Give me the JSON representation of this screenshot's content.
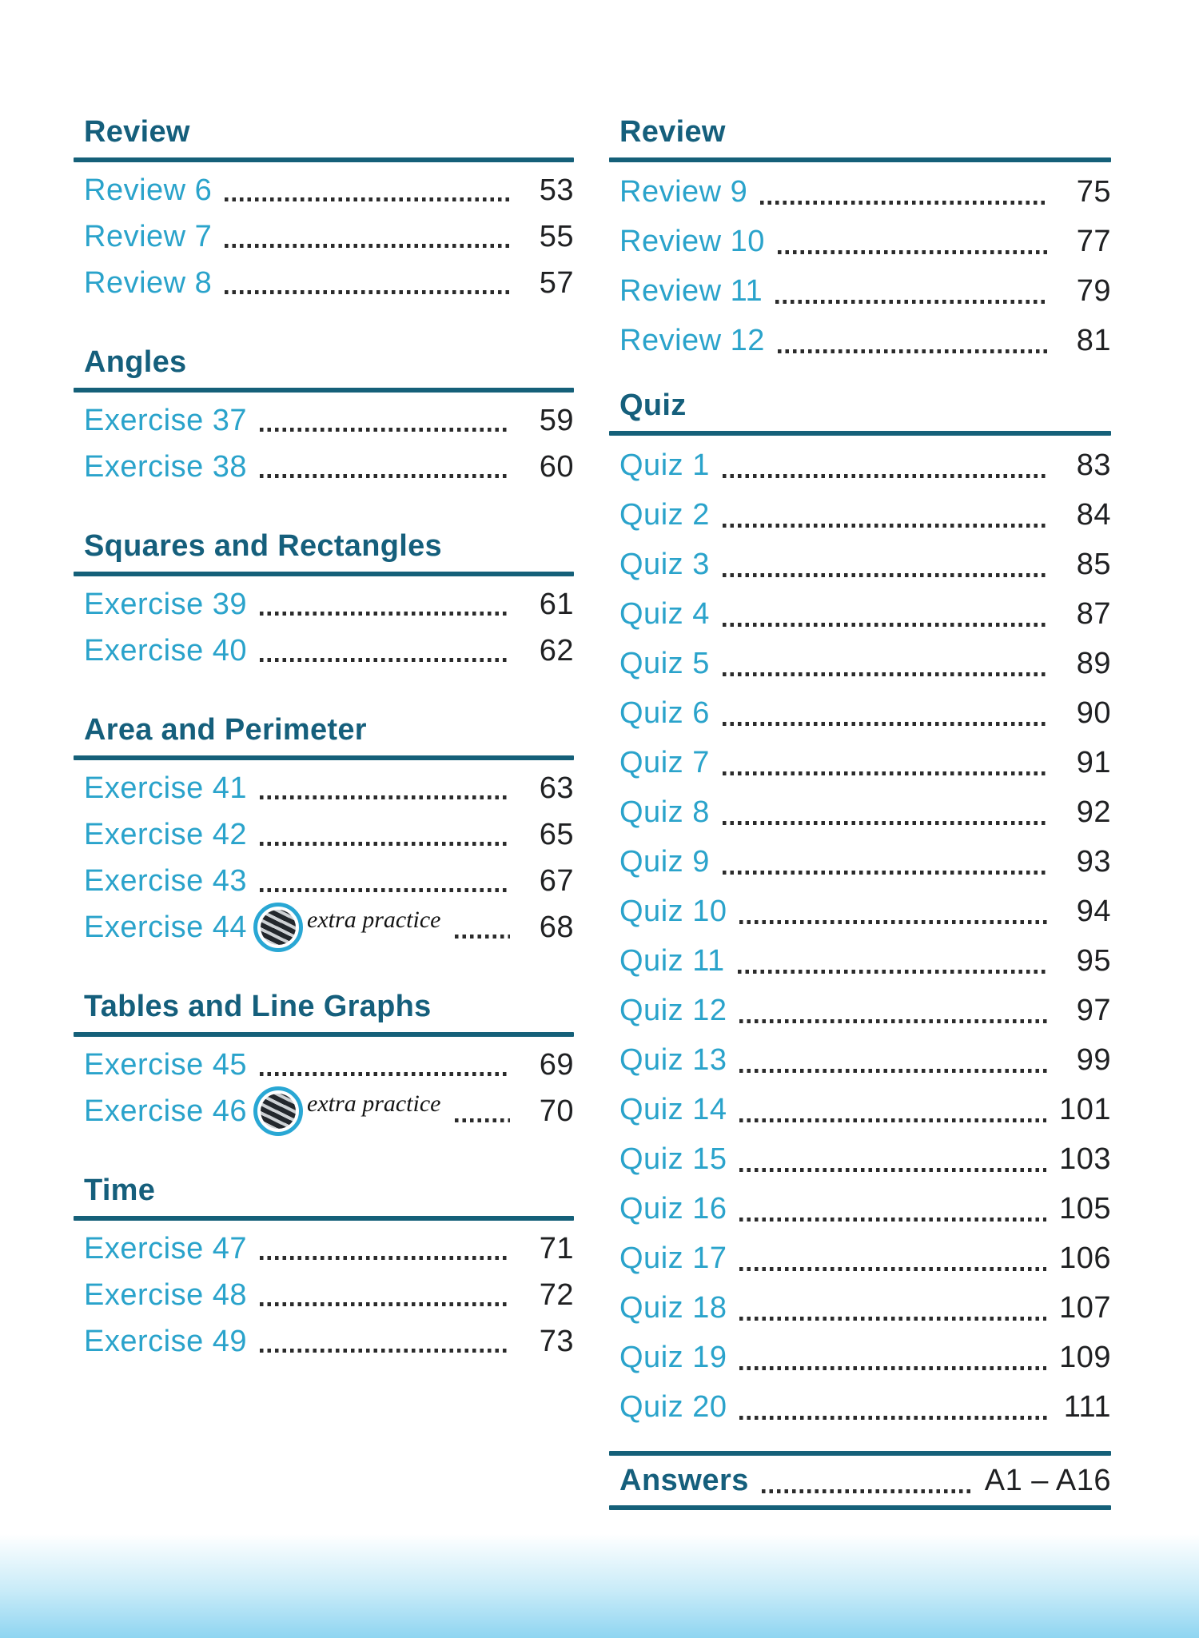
{
  "badge_text": "extra practice",
  "colors": {
    "heading": "#155f7c",
    "rule": "#156079",
    "entry": "#2aa3cb",
    "page_number": "#1f2022",
    "dots": "#2b2b2b",
    "badge_ring": "#29a7d4",
    "wave": "#8fd5f1"
  },
  "columns": [
    {
      "sections": [
        {
          "heading": "Review",
          "entries": [
            {
              "label": "Review 6",
              "page": "53"
            },
            {
              "label": "Review 7",
              "page": "55"
            },
            {
              "label": "Review 8",
              "page": "57"
            }
          ]
        },
        {
          "heading": "Angles",
          "entries": [
            {
              "label": "Exercise 37",
              "page": "59"
            },
            {
              "label": "Exercise 38",
              "page": "60"
            }
          ]
        },
        {
          "heading": "Squares and Rectangles",
          "entries": [
            {
              "label": "Exercise 39",
              "page": "61"
            },
            {
              "label": "Exercise 40",
              "page": "62"
            }
          ]
        },
        {
          "heading": "Area and Perimeter",
          "entries": [
            {
              "label": "Exercise 41",
              "page": "63"
            },
            {
              "label": "Exercise 42",
              "page": "65"
            },
            {
              "label": "Exercise 43",
              "page": "67"
            },
            {
              "label": "Exercise 44",
              "page": "68",
              "badge": true
            }
          ]
        },
        {
          "heading": "Tables and Line Graphs",
          "entries": [
            {
              "label": "Exercise 45",
              "page": "69"
            },
            {
              "label": "Exercise 46",
              "page": "70",
              "badge": true
            }
          ]
        },
        {
          "heading": "Time",
          "entries": [
            {
              "label": "Exercise 47",
              "page": "71"
            },
            {
              "label": "Exercise 48",
              "page": "72"
            },
            {
              "label": "Exercise 49",
              "page": "73"
            }
          ]
        }
      ]
    },
    {
      "sections": [
        {
          "heading": "Review",
          "entries": [
            {
              "label": "Review 9",
              "page": "75"
            },
            {
              "label": "Review 10",
              "page": "77"
            },
            {
              "label": "Review 11",
              "page": "79"
            },
            {
              "label": "Review 12",
              "page": "81"
            }
          ]
        },
        {
          "heading": "Quiz",
          "entries": [
            {
              "label": "Quiz 1",
              "page": "83"
            },
            {
              "label": "Quiz 2",
              "page": "84"
            },
            {
              "label": "Quiz 3",
              "page": "85"
            },
            {
              "label": "Quiz 4",
              "page": "87"
            },
            {
              "label": "Quiz 5",
              "page": "89"
            },
            {
              "label": "Quiz 6",
              "page": "90"
            },
            {
              "label": "Quiz 7",
              "page": "91"
            },
            {
              "label": "Quiz 8",
              "page": "92"
            },
            {
              "label": "Quiz 9",
              "page": "93"
            },
            {
              "label": "Quiz 10",
              "page": "94"
            },
            {
              "label": "Quiz 11",
              "page": "95"
            },
            {
              "label": "Quiz 12",
              "page": "97"
            },
            {
              "label": "Quiz 13",
              "page": "99"
            },
            {
              "label": "Quiz 14",
              "page": "101"
            },
            {
              "label": "Quiz 15",
              "page": "103"
            },
            {
              "label": "Quiz 16",
              "page": "105"
            },
            {
              "label": "Quiz 17",
              "page": "106"
            },
            {
              "label": "Quiz 18",
              "page": "107"
            },
            {
              "label": "Quiz 19",
              "page": "109"
            },
            {
              "label": "Quiz 20",
              "page": "111"
            }
          ]
        }
      ],
      "answers": {
        "label": "Answers",
        "page": "A1 – A16"
      }
    }
  ]
}
